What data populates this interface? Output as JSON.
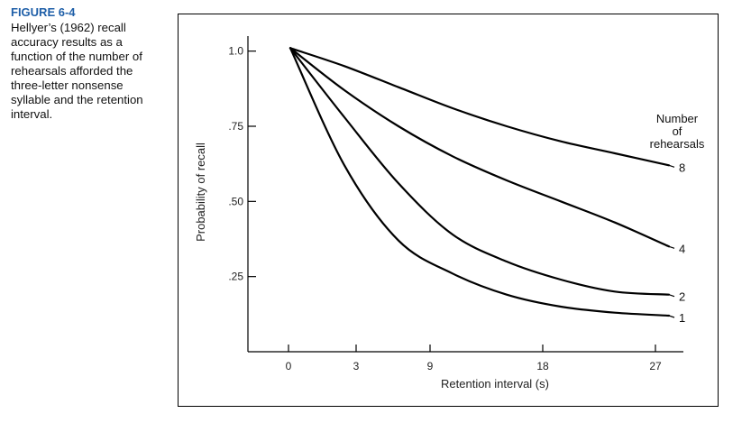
{
  "caption": {
    "label": "FIGURE 6-4",
    "text": "Hellyer’s (1962) recall accuracy results as a function of the number of rehearsals afforded the three-letter nonsense syllable and the retention interval."
  },
  "chart_data": {
    "type": "line",
    "title": "",
    "xlabel": "Retention interval (s)",
    "ylabel": "Probability of recall",
    "x_ticks": [
      "0",
      "3",
      "9",
      "18",
      "27"
    ],
    "y_ticks": [
      "1.0",
      ".75",
      ".50",
      ".25"
    ],
    "y_tick_values": [
      1.0,
      0.75,
      0.5,
      0.25
    ],
    "ylim": [
      0.0,
      1.05
    ],
    "legend_title": [
      "Number",
      "of",
      "rehearsals"
    ],
    "series": [
      {
        "name": "8",
        "x": [
          0,
          1,
          2,
          3,
          4,
          5,
          6,
          7
        ],
        "y": [
          1.01,
          0.95,
          0.88,
          0.81,
          0.75,
          0.7,
          0.66,
          0.62
        ]
      },
      {
        "name": "4",
        "x": [
          0,
          1,
          2,
          3,
          4,
          5,
          6,
          7
        ],
        "y": [
          1.01,
          0.87,
          0.75,
          0.65,
          0.57,
          0.5,
          0.43,
          0.35
        ]
      },
      {
        "name": "2",
        "x": [
          0,
          1,
          2,
          3,
          4,
          5,
          6,
          7
        ],
        "y": [
          1.01,
          0.78,
          0.56,
          0.39,
          0.3,
          0.24,
          0.2,
          0.19
        ]
      },
      {
        "name": "1",
        "x": [
          0,
          1,
          2,
          3,
          4,
          5,
          6,
          7
        ],
        "y": [
          1.01,
          0.62,
          0.37,
          0.26,
          0.19,
          0.15,
          0.13,
          0.12
        ]
      }
    ],
    "grid": false,
    "legend_position": "right"
  }
}
